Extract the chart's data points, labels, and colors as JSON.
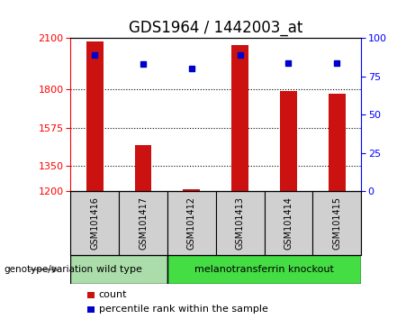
{
  "title": "GDS1964 / 1442003_at",
  "categories": [
    "GSM101416",
    "GSM101417",
    "GSM101412",
    "GSM101413",
    "GSM101414",
    "GSM101415"
  ],
  "counts": [
    2080,
    1470,
    1215,
    2060,
    1790,
    1775
  ],
  "percentile_ranks": [
    89,
    83,
    80,
    89,
    84,
    84
  ],
  "ylim_left": [
    1200,
    2100
  ],
  "ylim_right": [
    0,
    100
  ],
  "yticks_left": [
    1200,
    1350,
    1575,
    1800,
    2100
  ],
  "yticks_right": [
    0,
    25,
    50,
    75,
    100
  ],
  "bar_color": "#cc1111",
  "dot_color": "#0000cc",
  "bg_plot": "#ffffff",
  "bg_label": "#d0d0d0",
  "wild_type_indices": [
    0,
    1
  ],
  "knockout_indices": [
    2,
    3,
    4,
    5
  ],
  "group_label_wild": "wild type",
  "group_label_knockout": "melanotransferrin knockout",
  "group_color_wild": "#aaddaa",
  "group_color_knockout": "#44dd44",
  "xlabel_group": "genotype/variation",
  "legend_count_label": "count",
  "legend_percentile_label": "percentile rank within the sample",
  "title_fontsize": 12,
  "tick_fontsize": 8,
  "label_fontsize": 8,
  "bar_width": 0.35
}
